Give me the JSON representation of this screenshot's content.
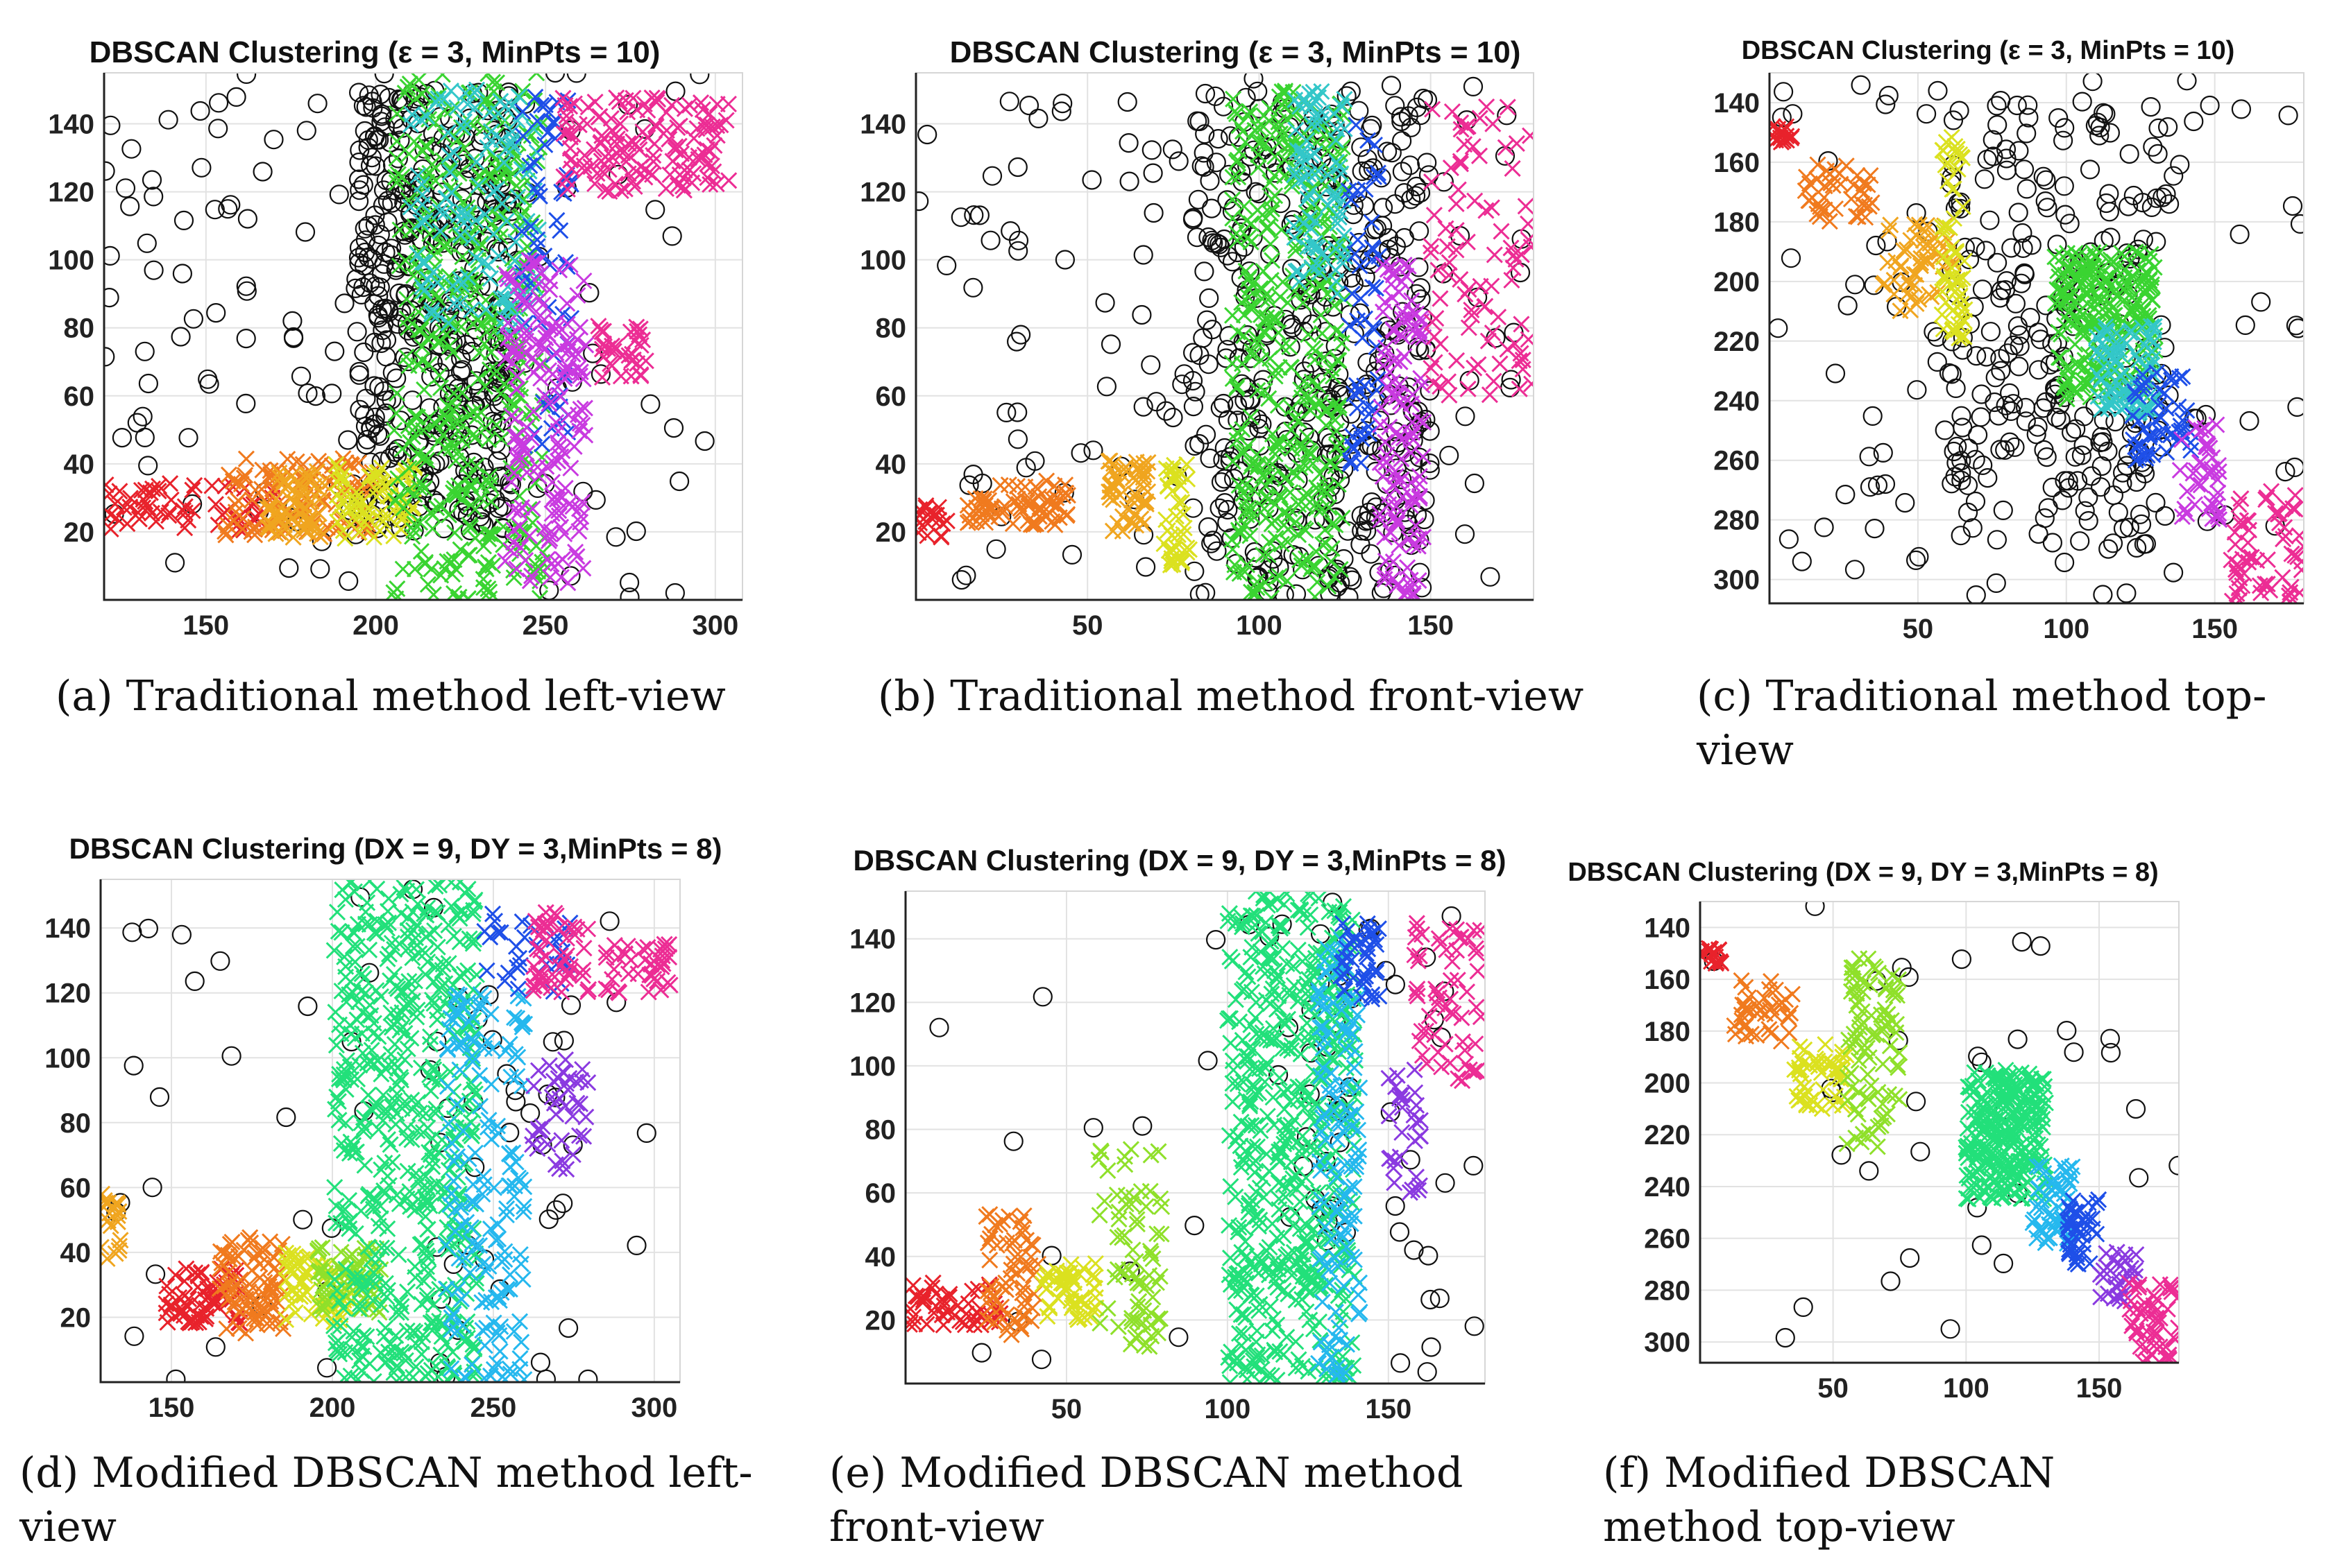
{
  "figure": {
    "panels": [
      {
        "id": "a",
        "title": "DBSCAN Clustering (ε = 3, MinPts = 10)",
        "caption": "(a)  Traditional method left-view"
      },
      {
        "id": "b",
        "title": "DBSCAN Clustering (ε = 3, MinPts = 10)",
        "caption": "(b)  Traditional method front-view"
      },
      {
        "id": "c",
        "title": "DBSCAN Clustering (ε = 3, MinPts = 10)",
        "caption": "(c)  Traditional   method   top-view"
      },
      {
        "id": "d",
        "title": "DBSCAN Clustering (DX = 9, DY = 3,MinPts = 8)",
        "caption": "(d)  Modified DBSCAN method left-view"
      },
      {
        "id": "e",
        "title": "DBSCAN Clustering (DX = 9, DY = 3,MinPts = 8)",
        "caption": "(e)   Modified   DBSCAN   method front-view"
      },
      {
        "id": "f",
        "title": "DBSCAN Clustering (DX = 9, DY = 3,MinPts = 8)",
        "caption": "(f)    Modified    DBSCAN method top-view"
      }
    ]
  },
  "chart_data": [
    {
      "type": "scatter",
      "panel": "a",
      "title": "DBSCAN Clustering (ε = 3, MinPts = 10)",
      "xlim": [
        120,
        308
      ],
      "ylim": [
        0,
        155
      ],
      "yreverse": false,
      "xticks": [
        150,
        200,
        250,
        300
      ],
      "yticks": [
        20,
        40,
        60,
        80,
        100,
        120,
        140
      ],
      "grid": true,
      "clusters": [
        {
          "x": [
            120,
            172
          ],
          "y": [
            20,
            35
          ],
          "color": "#e8222b",
          "n": 60
        },
        {
          "x": [
            155,
            200
          ],
          "y": [
            18,
            42
          ],
          "color": "#f07a1e",
          "n": 110
        },
        {
          "x": [
            168,
            185
          ],
          "y": [
            18,
            38
          ],
          "color": "#f0a51f",
          "n": 60
        },
        {
          "x": [
            188,
            212
          ],
          "y": [
            18,
            40
          ],
          "color": "#dbe11f",
          "n": 70
        },
        {
          "x": [
            205,
            250
          ],
          "y": [
            0,
            155
          ],
          "color": "#3ad431",
          "n": 420
        },
        {
          "x": [
            210,
            248
          ],
          "y": [
            80,
            150
          ],
          "color": "#33c7c9",
          "n": 120
        },
        {
          "x": [
            243,
            258
          ],
          "y": [
            45,
            150
          ],
          "color": "#1e4fe8",
          "n": 60
        },
        {
          "x": [
            238,
            262
          ],
          "y": [
            5,
            100
          ],
          "color": "#c93ae0",
          "n": 170
        },
        {
          "x": [
            255,
            305
          ],
          "y": [
            120,
            148
          ],
          "color": "#ec2d94",
          "n": 140
        },
        {
          "x": [
            265,
            280
          ],
          "y": [
            65,
            85
          ],
          "color": "#ec2d94",
          "n": 35
        }
      ],
      "noise": {
        "x": [
          120,
          300
        ],
        "y": [
          0,
          155
        ],
        "n": 560,
        "core": {
          "x": [
            195,
            240
          ],
          "y": [
            20,
            150
          ],
          "w": 0.7
        }
      }
    },
    {
      "type": "scatter",
      "panel": "b",
      "title": "DBSCAN Clustering (ε = 3, MinPts = 10)",
      "xlim": [
        0,
        180
      ],
      "ylim": [
        0,
        155
      ],
      "yreverse": false,
      "xticks": [
        50,
        100,
        150
      ],
      "yticks": [
        20,
        40,
        60,
        80,
        100,
        120,
        140
      ],
      "grid": true,
      "clusters": [
        {
          "x": [
            0,
            10
          ],
          "y": [
            18,
            28
          ],
          "color": "#e8222b",
          "n": 20
        },
        {
          "x": [
            15,
            45
          ],
          "y": [
            22,
            35
          ],
          "color": "#f07a1e",
          "n": 70
        },
        {
          "x": [
            55,
            68
          ],
          "y": [
            20,
            42
          ],
          "color": "#f0a51f",
          "n": 50
        },
        {
          "x": [
            72,
            80
          ],
          "y": [
            10,
            40
          ],
          "color": "#dbe11f",
          "n": 40
        },
        {
          "x": [
            92,
            125
          ],
          "y": [
            0,
            150
          ],
          "color": "#3ad431",
          "n": 380
        },
        {
          "x": [
            110,
            125
          ],
          "y": [
            90,
            150
          ],
          "color": "#33c7c9",
          "n": 80
        },
        {
          "x": [
            126,
            135
          ],
          "y": [
            40,
            140
          ],
          "color": "#1e4fe8",
          "n": 50
        },
        {
          "x": [
            135,
            148
          ],
          "y": [
            0,
            100
          ],
          "color": "#c93ae0",
          "n": 120
        },
        {
          "x": [
            150,
            180
          ],
          "y": [
            60,
            145
          ],
          "color": "#ec2d94",
          "n": 90
        }
      ],
      "noise": {
        "x": [
          0,
          180
        ],
        "y": [
          0,
          155
        ],
        "n": 520,
        "core": {
          "x": [
            80,
            150
          ],
          "y": [
            0,
            150
          ],
          "w": 0.75
        }
      }
    },
    {
      "type": "scatter",
      "panel": "c",
      "title": "DBSCAN Clustering (ε = 3, MinPts = 10)",
      "xlim": [
        0,
        180
      ],
      "ylim": [
        130,
        308
      ],
      "yreverse": true,
      "xticks": [
        50,
        100,
        150
      ],
      "yticks": [
        140,
        160,
        180,
        200,
        220,
        240,
        260,
        280,
        300
      ],
      "grid": true,
      "clusters": [
        {
          "x": [
            0,
            8
          ],
          "y": [
            148,
            154
          ],
          "color": "#e8222b",
          "n": 15
        },
        {
          "x": [
            12,
            35
          ],
          "y": [
            160,
            180
          ],
          "color": "#f07a1e",
          "n": 40
        },
        {
          "x": [
            38,
            62
          ],
          "y": [
            180,
            210
          ],
          "color": "#f0a51f",
          "n": 50
        },
        {
          "x": [
            58,
            66
          ],
          "y": [
            150,
            225
          ],
          "color": "#dbe11f",
          "n": 60
        },
        {
          "x": [
            96,
            130
          ],
          "y": [
            190,
            240
          ],
          "color": "#3ad431",
          "n": 220
        },
        {
          "x": [
            110,
            130
          ],
          "y": [
            215,
            245
          ],
          "color": "#33c7c9",
          "n": 80
        },
        {
          "x": [
            122,
            142
          ],
          "y": [
            230,
            260
          ],
          "color": "#1e4fe8",
          "n": 50
        },
        {
          "x": [
            138,
            152
          ],
          "y": [
            248,
            280
          ],
          "color": "#c93ae0",
          "n": 40
        },
        {
          "x": [
            155,
            180
          ],
          "y": [
            270,
            308
          ],
          "color": "#ec2d94",
          "n": 60
        }
      ],
      "noise": {
        "x": [
          0,
          180
        ],
        "y": [
          130,
          308
        ],
        "n": 340,
        "core": {
          "x": [
            60,
            135
          ],
          "y": [
            140,
            290
          ],
          "w": 0.7
        }
      }
    },
    {
      "type": "scatter",
      "panel": "d",
      "title": "DBSCAN Clustering (DX = 9, DY = 3,MinPts = 8)",
      "xlim": [
        128,
        308
      ],
      "ylim": [
        0,
        155
      ],
      "yreverse": false,
      "xticks": [
        150,
        200,
        250,
        300
      ],
      "yticks": [
        20,
        40,
        60,
        80,
        100,
        120,
        140
      ],
      "grid": true,
      "clusters": [
        {
          "x": [
            128,
            135
          ],
          "y": [
            35,
            58
          ],
          "color": "#f0a51f",
          "n": 20
        },
        {
          "x": [
            148,
            172
          ],
          "y": [
            18,
            35
          ],
          "color": "#e8222b",
          "n": 70
        },
        {
          "x": [
            165,
            185
          ],
          "y": [
            15,
            45
          ],
          "color": "#f07a1e",
          "n": 80
        },
        {
          "x": [
            185,
            205
          ],
          "y": [
            18,
            40
          ],
          "color": "#dbe11f",
          "n": 60
        },
        {
          "x": [
            195,
            215
          ],
          "y": [
            20,
            42
          ],
          "color": "#8fe02a",
          "n": 60
        },
        {
          "x": [
            200,
            245
          ],
          "y": [
            0,
            155
          ],
          "color": "#22e07a",
          "n": 520
        },
        {
          "x": [
            235,
            260
          ],
          "y": [
            0,
            120
          ],
          "color": "#25b8ee",
          "n": 160
        },
        {
          "x": [
            245,
            275
          ],
          "y": [
            120,
            145
          ],
          "color": "#1e4fe8",
          "n": 30
        },
        {
          "x": [
            262,
            280
          ],
          "y": [
            120,
            145
          ],
          "color": "#ec2d94",
          "n": 50
        },
        {
          "x": [
            262,
            280
          ],
          "y": [
            65,
            100
          ],
          "color": "#8a3ae0",
          "n": 40
        },
        {
          "x": [
            285,
            305
          ],
          "y": [
            120,
            135
          ],
          "color": "#ec2d94",
          "n": 40
        }
      ],
      "noise": {
        "x": [
          128,
          300
        ],
        "y": [
          0,
          155
        ],
        "n": 70,
        "core": {
          "x": [
            230,
            275
          ],
          "y": [
            0,
            120
          ],
          "w": 0.5
        }
      }
    },
    {
      "type": "scatter",
      "panel": "e",
      "title": "DBSCAN Clustering (DX = 9, DY = 3,MinPts = 8)",
      "xlim": [
        0,
        180
      ],
      "ylim": [
        0,
        155
      ],
      "yreverse": false,
      "xticks": [
        50,
        100,
        150
      ],
      "yticks": [
        20,
        40,
        60,
        80,
        100,
        120,
        140
      ],
      "grid": true,
      "clusters": [
        {
          "x": [
            0,
            30
          ],
          "y": [
            18,
            32
          ],
          "color": "#e8222b",
          "n": 50
        },
        {
          "x": [
            25,
            42
          ],
          "y": [
            15,
            55
          ],
          "color": "#f07a1e",
          "n": 60
        },
        {
          "x": [
            42,
            60
          ],
          "y": [
            20,
            38
          ],
          "color": "#dbe11f",
          "n": 50
        },
        {
          "x": [
            60,
            80
          ],
          "y": [
            10,
            75
          ],
          "color": "#8fe02a",
          "n": 70
        },
        {
          "x": [
            100,
            140
          ],
          "y": [
            0,
            155
          ],
          "color": "#22e07a",
          "n": 520
        },
        {
          "x": [
            128,
            142
          ],
          "y": [
            0,
            140
          ],
          "color": "#25b8ee",
          "n": 120
        },
        {
          "x": [
            135,
            148
          ],
          "y": [
            120,
            145
          ],
          "color": "#1e4fe8",
          "n": 40
        },
        {
          "x": [
            150,
            160
          ],
          "y": [
            60,
            100
          ],
          "color": "#8a3ae0",
          "n": 30
        },
        {
          "x": [
            158,
            180
          ],
          "y": [
            95,
            145
          ],
          "color": "#ec2d94",
          "n": 60
        }
      ],
      "noise": {
        "x": [
          0,
          180
        ],
        "y": [
          0,
          155
        ],
        "n": 70,
        "core": {
          "x": [
            110,
            170
          ],
          "y": [
            0,
            145
          ],
          "w": 0.6
        }
      }
    },
    {
      "type": "scatter",
      "panel": "f",
      "title": "DBSCAN Clustering (DX = 9, DY = 3,MinPts = 8)",
      "xlim": [
        0,
        180
      ],
      "ylim": [
        130,
        308
      ],
      "yreverse": true,
      "xticks": [
        50,
        100,
        150
      ],
      "yticks": [
        140,
        160,
        180,
        200,
        220,
        240,
        260,
        280,
        300
      ],
      "grid": true,
      "clusters": [
        {
          "x": [
            0,
            8
          ],
          "y": [
            148,
            154
          ],
          "color": "#e8222b",
          "n": 15
        },
        {
          "x": [
            12,
            35
          ],
          "y": [
            160,
            185
          ],
          "color": "#f07a1e",
          "n": 40
        },
        {
          "x": [
            35,
            55
          ],
          "y": [
            185,
            210
          ],
          "color": "#dbe11f",
          "n": 50
        },
        {
          "x": [
            55,
            75
          ],
          "y": [
            145,
            225
          ],
          "color": "#8fe02a",
          "n": 90
        },
        {
          "x": [
            100,
            130
          ],
          "y": [
            195,
            245
          ],
          "color": "#22e07a",
          "n": 260
        },
        {
          "x": [
            125,
            140
          ],
          "y": [
            232,
            262
          ],
          "color": "#25b8ee",
          "n": 50
        },
        {
          "x": [
            138,
            150
          ],
          "y": [
            245,
            270
          ],
          "color": "#1e4fe8",
          "n": 40
        },
        {
          "x": [
            150,
            165
          ],
          "y": [
            265,
            285
          ],
          "color": "#8a3ae0",
          "n": 30
        },
        {
          "x": [
            160,
            180
          ],
          "y": [
            275,
            308
          ],
          "color": "#ec2d94",
          "n": 50
        }
      ],
      "noise": {
        "x": [
          0,
          180
        ],
        "y": [
          130,
          308
        ],
        "n": 35,
        "core": {
          "x": [
            60,
            170
          ],
          "y": [
            140,
            290
          ],
          "w": 0.6
        }
      }
    }
  ]
}
